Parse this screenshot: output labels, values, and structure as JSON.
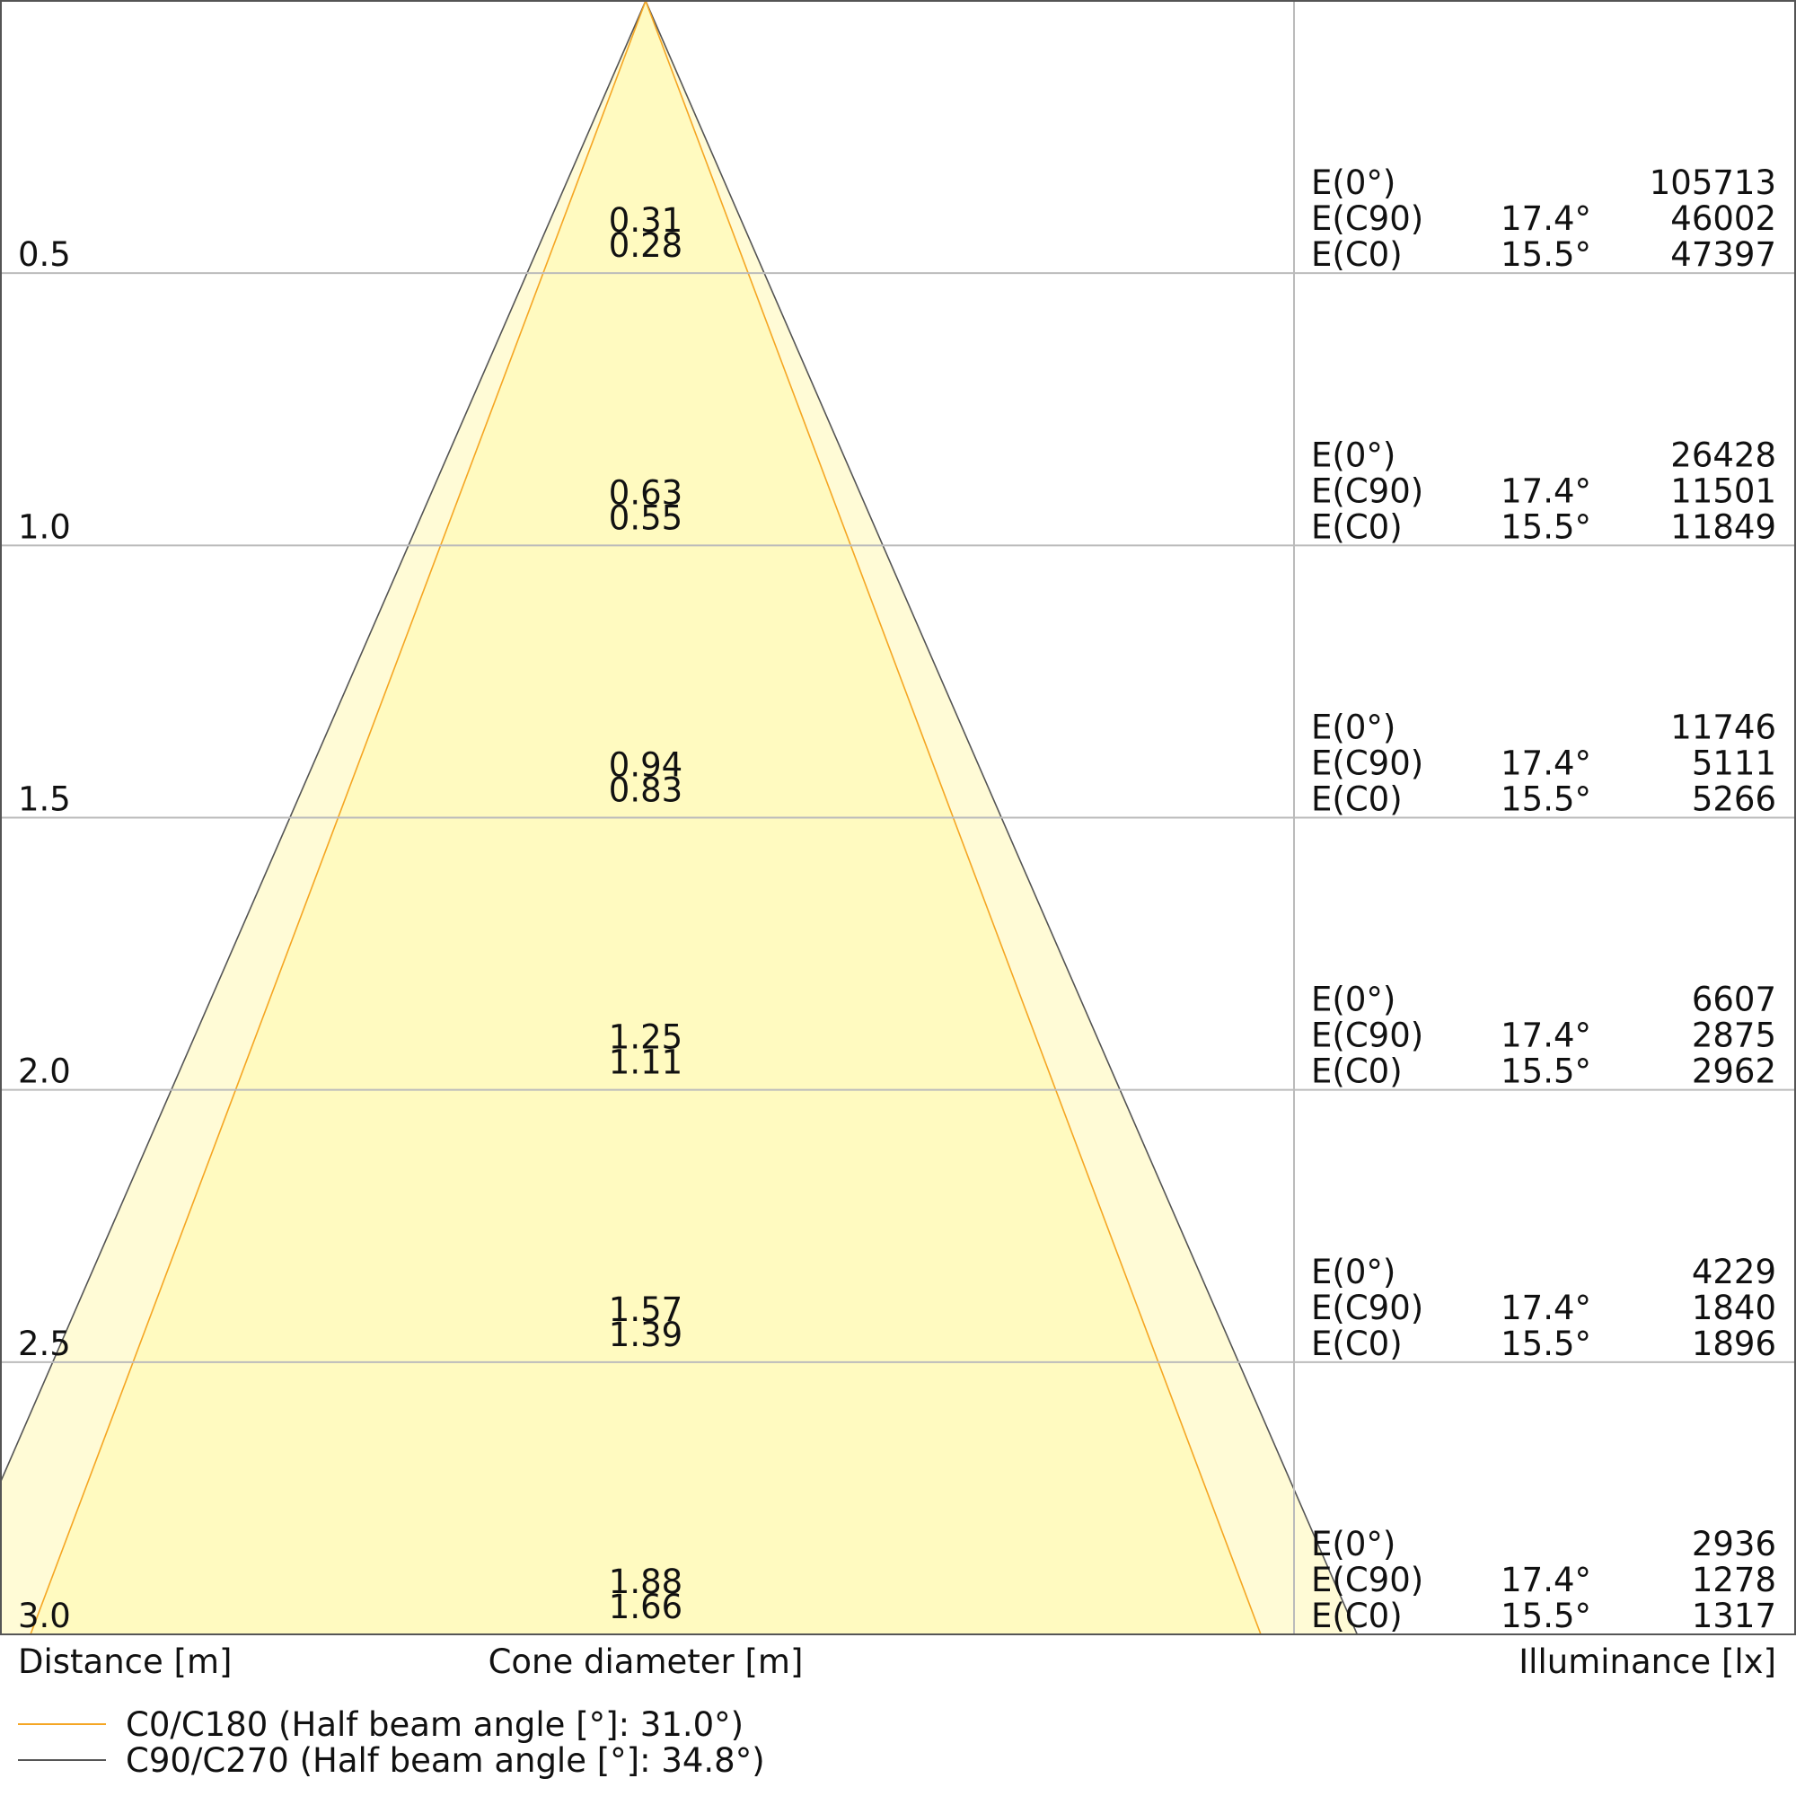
{
  "chart_data": {
    "type": "cone diagram",
    "x_label": "Cone diameter [m]",
    "y_label": "Distance [m]",
    "right_label": "Illuminance [lx]",
    "distances": [
      0.5,
      1.0,
      1.5,
      2.0,
      2.5,
      3.0
    ],
    "distance_labels": [
      "0.5",
      "1.0",
      "1.5",
      "2.0",
      "2.5",
      "3.0"
    ],
    "series": [
      {
        "name": "C0/C180 (Half beam angle [°]: 31.0°)",
        "half_beam_angle": 31.0,
        "color": "#f5a623",
        "cone_diameters": [
          "0.28",
          "0.55",
          "0.83",
          "1.11",
          "1.39",
          "1.66"
        ]
      },
      {
        "name": "C90/C270 (Half beam angle [°]: 34.8°)",
        "half_beam_angle": 34.8,
        "color": "#555555",
        "cone_diameters": [
          "0.31",
          "0.63",
          "0.94",
          "1.25",
          "1.57",
          "1.88"
        ]
      }
    ],
    "illuminance_rows": [
      {
        "label": "E(0°)",
        "angle": "",
        "values": [
          "105713",
          "26428",
          "11746",
          "6607",
          "4229",
          "2936"
        ]
      },
      {
        "label": "E(C90)",
        "angle": "17.4°",
        "values": [
          "46002",
          "11501",
          "5111",
          "2875",
          "1840",
          "1278"
        ]
      },
      {
        "label": "E(C0)",
        "angle": "15.5°",
        "values": [
          "47397",
          "11849",
          "5266",
          "2962",
          "1896",
          "1317"
        ]
      }
    ],
    "colors": {
      "cone_outer_fill": "#fffbd6",
      "cone_inner_fill": "#fffac0",
      "grid": "#bbbbbb",
      "border": "#555555"
    },
    "grid": true,
    "legend_position": "bottom-left"
  }
}
